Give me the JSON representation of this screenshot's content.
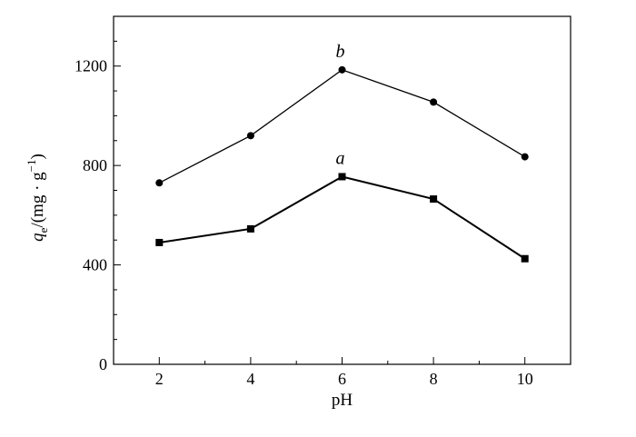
{
  "chart_data": {
    "type": "line",
    "title": "",
    "xlabel": "pH",
    "ylabel": {
      "var": "q",
      "sub": "e",
      "unit_prefix": "/(mg · g",
      "sup": "−1",
      "unit_suffix": ")"
    },
    "xlim": [
      1,
      11
    ],
    "ylim": [
      0,
      1400
    ],
    "xticks": [
      2,
      4,
      6,
      8,
      10
    ],
    "xtick_labels": [
      "2",
      "4",
      "6",
      "8",
      "10"
    ],
    "yticks": [
      0,
      400,
      800,
      1200
    ],
    "ytick_labels": [
      "0",
      "400",
      "800",
      "1200"
    ],
    "x_minor_step": 1,
    "y_minor_step": 100,
    "grid": false,
    "legend": null,
    "x": [
      2,
      4,
      6,
      8,
      10
    ],
    "series": [
      {
        "name": "",
        "tag": "b",
        "marker": "circle",
        "values": [
          730,
          920,
          1185,
          1055,
          835
        ]
      },
      {
        "name": "",
        "tag": "a",
        "marker": "square",
        "values": [
          490,
          545,
          755,
          665,
          425
        ]
      }
    ]
  }
}
